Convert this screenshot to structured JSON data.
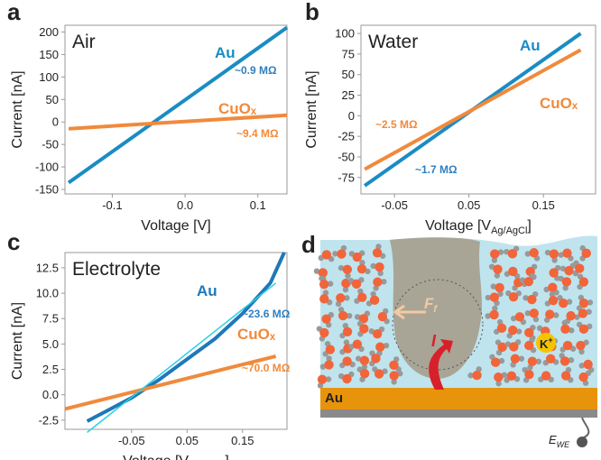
{
  "chart_data": [
    {
      "type": "line",
      "panel_label": "a",
      "title": "Air",
      "xlabel": "Voltage  [V]",
      "ylabel": "Current  [nA]",
      "xlim": [
        -0.165,
        0.14
      ],
      "ylim": [
        -160,
        215
      ],
      "xticks": [
        -0.1,
        {
          "value": 0,
          "label": "0.0"
        },
        0.1
      ],
      "yticks": [
        -150,
        -100,
        -50,
        0,
        50,
        100,
        150,
        200
      ],
      "series": [
        {
          "name": "Au",
          "color": "#1a8cc4",
          "x": [
            -0.16,
            0.14
          ],
          "values": [
            -135,
            210
          ]
        },
        {
          "name": "CuOₓ",
          "color": "#f08a3c",
          "x": [
            -0.16,
            0.14
          ],
          "values": [
            -15,
            15
          ]
        }
      ],
      "annotations": [
        {
          "text": "~0.9 MΩ",
          "color": "#2f7fc0"
        },
        {
          "text": "~9.4 MΩ",
          "color": "#f08a3c"
        }
      ]
    },
    {
      "type": "line",
      "panel_label": "b",
      "title": "Water",
      "xlabel": "Voltage  [V",
      "xlabel_sub": "Ag/AgCl",
      "xlabel_end": "]",
      "ylabel": "Current  [nA]",
      "xlim": [
        -0.095,
        0.22
      ],
      "ylim": [
        -95,
        110
      ],
      "xticks": [
        -0.05,
        0.05,
        0.15
      ],
      "yticks": [
        -75,
        -50,
        -25,
        0,
        25,
        50,
        75,
        100
      ],
      "series": [
        {
          "name": "Au",
          "color": "#1a8cc4",
          "x": [
            -0.09,
            0.2
          ],
          "values": [
            -85,
            100
          ]
        },
        {
          "name": "CuOₓ",
          "color": "#f08a3c",
          "x": [
            -0.09,
            0.2
          ],
          "values": [
            -65,
            80
          ]
        }
      ],
      "annotations": [
        {
          "text": "~2.5 MΩ",
          "color": "#f08a3c"
        },
        {
          "text": "~1.7 MΩ",
          "color": "#2f7fc0"
        }
      ]
    },
    {
      "type": "line",
      "panel_label": "c",
      "title": "Electrolyte",
      "xlabel": "Voltage  [V",
      "xlabel_sub": "Ag/AgCl",
      "xlabel_end": "]",
      "ylabel": "Current  [nA]",
      "xlim": [
        -0.17,
        0.23
      ],
      "ylim": [
        -3.4,
        14
      ],
      "xticks": [
        -0.05,
        0.05,
        0.15
      ],
      "yticks": [
        -2.5,
        {
          "value": 0,
          "label": "0.0"
        },
        2.5,
        {
          "value": 5,
          "label": "5.0"
        },
        7.5,
        {
          "value": 10,
          "label": "10.0"
        },
        12.5
      ],
      "series": [
        {
          "name": "Au",
          "color": "#1f78b8",
          "x": [
            -0.13,
            -0.05,
            0.0,
            0.05,
            0.1,
            0.15,
            0.2,
            0.225
          ],
          "values": [
            -2.6,
            -0.3,
            1.5,
            3.5,
            5.5,
            8.0,
            11.0,
            14.0
          ]
        },
        {
          "name": "CuOₓ",
          "color": "#f08a3c",
          "x": [
            -0.17,
            0.21
          ],
          "values": [
            -1.4,
            3.8
          ]
        },
        {
          "color": "#2ad0e6",
          "x": [
            -0.13,
            0.21
          ],
          "values": [
            -3.7,
            11.0
          ]
        }
      ],
      "annotations": [
        {
          "text": "~23.6 MΩ",
          "color": "#2f7fc0"
        },
        {
          "text": "~70.0 MΩ",
          "color": "#f08a3c"
        }
      ]
    }
  ],
  "diagram": {
    "label": "d",
    "electrode": "Au",
    "force": "F",
    "force_sub": "f",
    "current": "I",
    "ion": "K",
    "ion_sup": "+",
    "potential": "E",
    "potential_sub": "WE"
  }
}
